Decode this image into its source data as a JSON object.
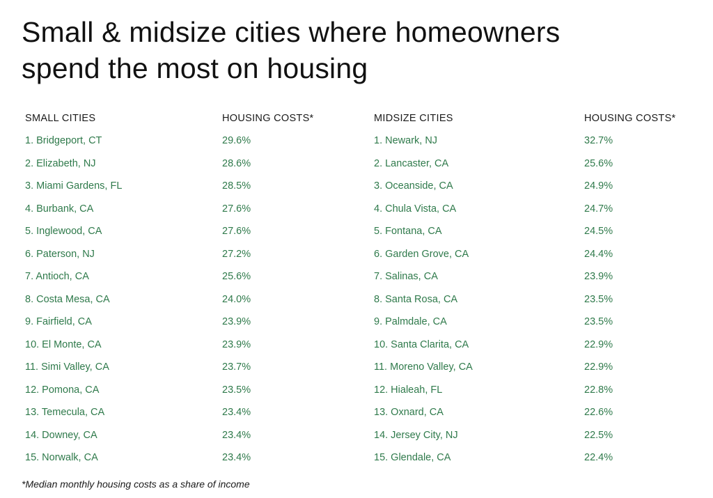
{
  "title_lines": [
    "Small & midsize cities where homeowners",
    "spend the most on housing"
  ],
  "footnote": "*Median monthly housing costs as a share of income",
  "chart_data": [
    {
      "type": "table",
      "columns": [
        "SMALL CITIES",
        "HOUSING COSTS*"
      ],
      "rows": [
        {
          "city": "1. Bridgeport, CT",
          "value": "29.6%"
        },
        {
          "city": "2. Elizabeth, NJ",
          "value": "28.6%"
        },
        {
          "city": "3. Miami Gardens, FL",
          "value": "28.5%"
        },
        {
          "city": "4. Burbank, CA",
          "value": "27.6%"
        },
        {
          "city": "5. Inglewood, CA",
          "value": "27.6%"
        },
        {
          "city": "6. Paterson, NJ",
          "value": "27.2%"
        },
        {
          "city": "7. Antioch, CA",
          "value": "25.6%"
        },
        {
          "city": "8. Costa Mesa, CA",
          "value": "24.0%"
        },
        {
          "city": "9. Fairfield, CA",
          "value": "23.9%"
        },
        {
          "city": "10. El Monte, CA",
          "value": "23.9%"
        },
        {
          "city": "11. Simi Valley, CA",
          "value": "23.7%"
        },
        {
          "city": "12. Pomona, CA",
          "value": "23.5%"
        },
        {
          "city": "13. Temecula, CA",
          "value": "23.4%"
        },
        {
          "city": "14. Downey, CA",
          "value": "23.4%"
        },
        {
          "city": "15. Norwalk, CA",
          "value": "23.4%"
        }
      ]
    },
    {
      "type": "table",
      "columns": [
        "MIDSIZE CITIES",
        "HOUSING COSTS*"
      ],
      "rows": [
        {
          "city": "1. Newark, NJ",
          "value": "32.7%"
        },
        {
          "city": "2. Lancaster, CA",
          "value": "25.6%"
        },
        {
          "city": "3. Oceanside, CA",
          "value": "24.9%"
        },
        {
          "city": "4. Chula Vista, CA",
          "value": "24.7%"
        },
        {
          "city": "5. Fontana, CA",
          "value": "24.5%"
        },
        {
          "city": "6. Garden Grove, CA",
          "value": "24.4%"
        },
        {
          "city": "7. Salinas, CA",
          "value": "23.9%"
        },
        {
          "city": "8. Santa Rosa, CA",
          "value": "23.5%"
        },
        {
          "city": "9. Palmdale, CA",
          "value": "23.5%"
        },
        {
          "city": "10. Santa Clarita, CA",
          "value": "22.9%"
        },
        {
          "city": "11. Moreno Valley, CA",
          "value": "22.9%"
        },
        {
          "city": "12. Hialeah, FL",
          "value": "22.8%"
        },
        {
          "city": "13. Oxnard, CA",
          "value": "22.6%"
        },
        {
          "city": "14. Jersey City, NJ",
          "value": "22.5%"
        },
        {
          "city": "15. Glendale, CA",
          "value": "22.4%"
        }
      ]
    }
  ],
  "colors": {
    "title": "#111111",
    "header": "#1a1a1a",
    "row_text": "#2f7a4b",
    "background": "#ffffff"
  }
}
